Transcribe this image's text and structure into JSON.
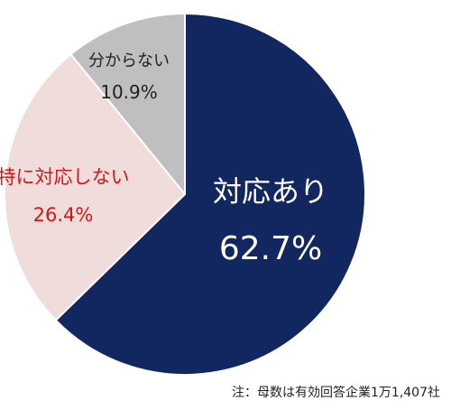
{
  "chart_data": {
    "type": "pie",
    "start": "top",
    "direction": "clockwise",
    "slices": [
      {
        "label": "対応あり",
        "value": 62.7,
        "value_label": "62.7%",
        "color": "#122660",
        "text_color": "#ffffff"
      },
      {
        "label": "特に対応しない",
        "value": 26.4,
        "value_label": "26.4%",
        "color": "#f1dcdc",
        "text_color": "#cc1a1a"
      },
      {
        "label": "分からない",
        "value": 10.9,
        "value_label": "10.9%",
        "color": "#bfbfbf",
        "text_color": "#222222"
      }
    ],
    "note": "注：母数は有効回答企業1万1,407社"
  }
}
